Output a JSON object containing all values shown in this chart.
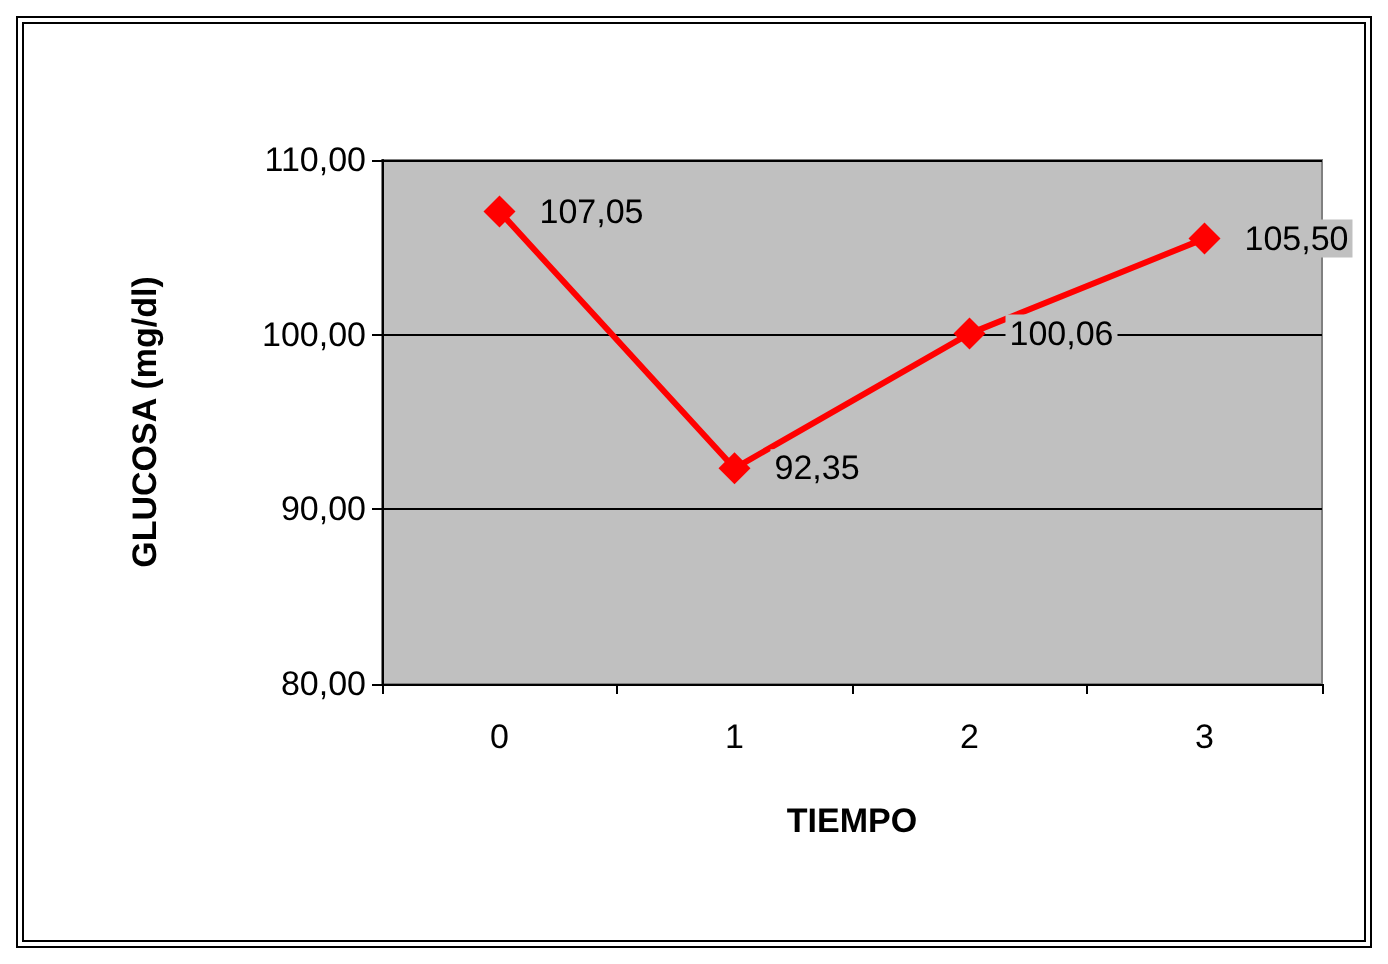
{
  "chart_data": {
    "type": "line",
    "xlabel": "TIEMPO",
    "ylabel": "GLUCOSA (mg/dl)",
    "categories": [
      "0",
      "1",
      "2",
      "3"
    ],
    "series": [
      {
        "color": "#ff0000",
        "values": [
          107.05,
          92.35,
          100.06,
          105.5
        ],
        "value_labels": [
          "107,05",
          "92,35",
          "100,06",
          "105,50"
        ]
      }
    ],
    "ylim": [
      80,
      110
    ],
    "yticks": [
      {
        "value": 80,
        "label": "80,00"
      },
      {
        "value": 90,
        "label": "90,00"
      },
      {
        "value": 100,
        "label": "100,00"
      },
      {
        "value": 110,
        "label": "110,00"
      }
    ],
    "grid": "y",
    "marker": "diamond",
    "line_style": "solid"
  }
}
